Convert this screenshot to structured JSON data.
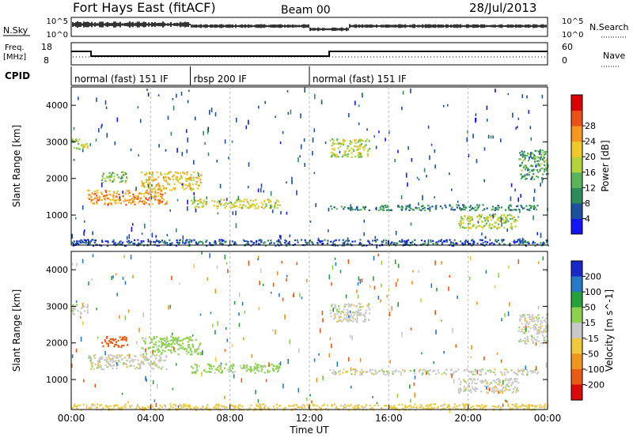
{
  "chart_data": {
    "type": "heatmap",
    "header": {
      "title": "Fort Hays East (fitACF)",
      "beam": "Beam 00",
      "date": "28/Jul/2013"
    },
    "noise_panel": {
      "left_label": "N.Sky",
      "right_label": "N.Search",
      "left_ticks": [
        "10^5",
        "10^0"
      ],
      "right_ticks": [
        "10^5",
        "10^0"
      ]
    },
    "freq_panel": {
      "left_label_1": "Freq.",
      "left_label_2": "[MHz]",
      "right_label": "Nave",
      "left_ticks": [
        "18",
        "8"
      ],
      "right_ticks": [
        "60",
        "0"
      ],
      "freq_steps": [
        {
          "x": 0.0,
          "y": 14.5
        },
        {
          "x": 1.0,
          "y": 14.5
        },
        {
          "x": 1.0,
          "y": 11.5
        },
        {
          "x": 13.0,
          "y": 11.5
        },
        {
          "x": 13.0,
          "y": 14.5
        },
        {
          "x": 24.0,
          "y": 14.5
        }
      ]
    },
    "cpid": {
      "label": "CPID",
      "segments": [
        {
          "start": 0,
          "end": 6,
          "text": "normal (fast) 151 IF"
        },
        {
          "start": 6,
          "end": 12,
          "text": "rbsp 200 IF"
        },
        {
          "start": 12,
          "end": 24,
          "text": "normal (fast) 151 IF"
        }
      ]
    },
    "x_axis": {
      "label": "Time UT",
      "range": [
        0,
        24
      ],
      "ticks": [
        0,
        4,
        8,
        12,
        16,
        20,
        24
      ],
      "tick_labels": [
        "00:00",
        "04:00",
        "08:00",
        "12:00",
        "16:00",
        "20:00",
        "00:00"
      ]
    },
    "y_axis": {
      "label": "Slant Range [km]",
      "range": [
        180,
        4500
      ],
      "ticks": [
        1000,
        2000,
        3000,
        4000
      ],
      "tick_labels": [
        "1000",
        "2000",
        "3000",
        "4000"
      ]
    },
    "power_panel": {
      "colorbar_label": "Power [dB]",
      "colorbar_ticks": [
        "4",
        "8",
        "12",
        "16",
        "20",
        "24",
        "28"
      ],
      "colors": [
        "#1414ff",
        "#1e50a0",
        "#2d8c5a",
        "#5ab45a",
        "#b4d23c",
        "#f0c828",
        "#f5961e",
        "#eb5014",
        "#dc0000"
      ],
      "echo_regions": [
        {
          "t_start": 0.0,
          "t_end": 0.8,
          "r_start": 2800,
          "r_end": 3100,
          "power": 18
        },
        {
          "t_start": 1.5,
          "t_end": 2.8,
          "r_start": 1900,
          "r_end": 2200,
          "power": 16
        },
        {
          "t_start": 0.8,
          "t_end": 4.8,
          "r_start": 1300,
          "r_end": 1700,
          "power": 26
        },
        {
          "t_start": 3.5,
          "t_end": 6.5,
          "r_start": 1700,
          "r_end": 2200,
          "power": 22
        },
        {
          "t_start": 6.0,
          "t_end": 10.5,
          "r_start": 1200,
          "r_end": 1450,
          "power": 20
        },
        {
          "t_start": 13.0,
          "t_end": 15.0,
          "r_start": 2600,
          "r_end": 3100,
          "power": 18
        },
        {
          "t_start": 13.0,
          "t_end": 23.5,
          "r_start": 1150,
          "r_end": 1300,
          "power": 10
        },
        {
          "t_start": 19.5,
          "t_end": 22.5,
          "r_start": 650,
          "r_end": 1050,
          "power": 18
        },
        {
          "t_start": 22.5,
          "t_end": 24.0,
          "r_start": 2000,
          "r_end": 2800,
          "power": 12
        },
        {
          "t_start": 0.0,
          "t_end": 24.0,
          "r_start": 180,
          "r_end": 350,
          "power": 6
        }
      ]
    },
    "velocity_panel": {
      "colorbar_label": "Velocity [m s^-1]",
      "colorbar_ticks": [
        "200",
        "100",
        "50",
        "15",
        "-15",
        "-50",
        "-100",
        "-200"
      ],
      "colors": [
        "#1a28c8",
        "#2878c8",
        "#28a03c",
        "#8cd250",
        "#c8c8c8",
        "#f0c83c",
        "#f0961e",
        "#eb5a14",
        "#dc0a0a"
      ],
      "echo_regions": [
        {
          "t_start": 0.0,
          "t_end": 0.8,
          "r_start": 2800,
          "r_end": 3100,
          "velocity": 0
        },
        {
          "t_start": 1.5,
          "t_end": 2.8,
          "r_start": 1900,
          "r_end": 2200,
          "velocity": -150
        },
        {
          "t_start": 0.8,
          "t_end": 4.8,
          "r_start": 1300,
          "r_end": 1700,
          "velocity": 0
        },
        {
          "t_start": 3.5,
          "t_end": 6.5,
          "r_start": 1700,
          "r_end": 2200,
          "velocity": 30
        },
        {
          "t_start": 6.0,
          "t_end": 10.5,
          "r_start": 1200,
          "r_end": 1450,
          "velocity": 30
        },
        {
          "t_start": 13.0,
          "t_end": 15.0,
          "r_start": 2600,
          "r_end": 3100,
          "velocity": 0
        },
        {
          "t_start": 13.0,
          "t_end": 23.5,
          "r_start": 1150,
          "r_end": 1300,
          "velocity": 0
        },
        {
          "t_start": 19.5,
          "t_end": 22.5,
          "r_start": 650,
          "r_end": 1050,
          "velocity": 0
        },
        {
          "t_start": 22.5,
          "t_end": 24.0,
          "r_start": 2000,
          "r_end": 2800,
          "velocity": 0
        },
        {
          "t_start": 0.0,
          "t_end": 24.0,
          "r_start": 180,
          "r_end": 350,
          "velocity": -30
        }
      ]
    }
  }
}
